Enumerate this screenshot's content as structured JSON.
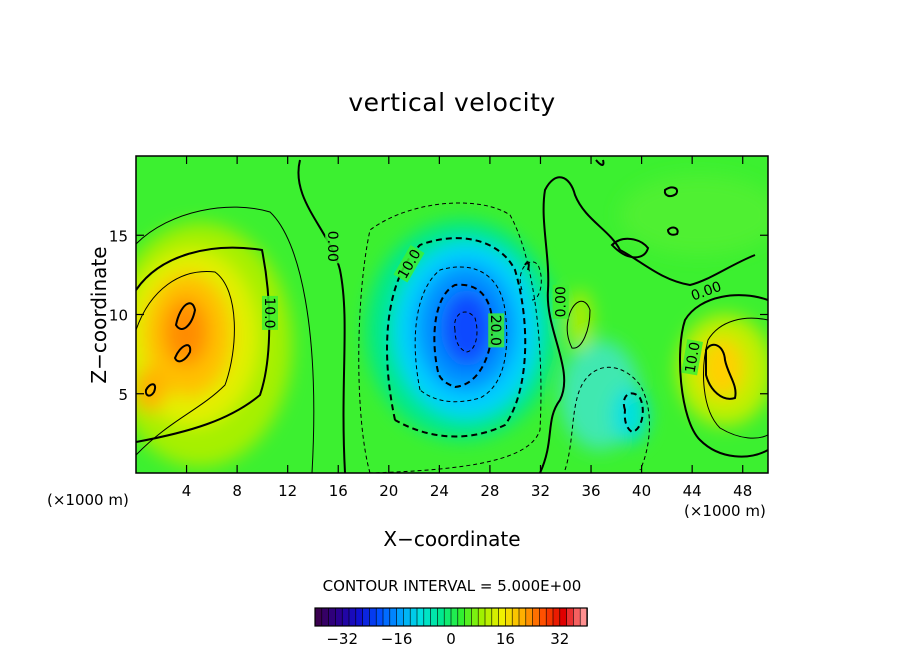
{
  "chart_data": {
    "type": "heatmap",
    "title": "vertical velocity",
    "xlabel": "X−coordinate",
    "ylabel": "Z−coordinate",
    "x_unit": "(×1000 m)",
    "y_unit": "(×1000 m)",
    "xlim": [
      0,
      50
    ],
    "ylim": [
      0,
      20
    ],
    "x_ticks": [
      4,
      8,
      12,
      16,
      20,
      24,
      28,
      32,
      36,
      40,
      44,
      48
    ],
    "y_ticks": [
      5,
      10,
      15
    ],
    "contour_interval": "CONTOUR INTERVAL = 5.000E+00",
    "contour_labels": [
      {
        "text": "0.00",
        "x": 15.6,
        "y": 14.3
      },
      {
        "text": "10.0",
        "x": 10.6,
        "y": 10.1
      },
      {
        "text": "10.0",
        "x": 21.6,
        "y": 13.2
      },
      {
        "text": "20.0",
        "x": 28.5,
        "y": 9.0
      },
      {
        "text": "0.00",
        "x": 33.6,
        "y": 10.8
      },
      {
        "text": "0.00",
        "x": 45.1,
        "y": 11.5
      },
      {
        "text": "10.0",
        "x": 44.0,
        "y": 7.3
      }
    ],
    "colorbar": {
      "range": [
        -40,
        40
      ],
      "ticks": [
        -32,
        -16,
        0,
        16,
        32
      ],
      "colors": [
        "#3a0050",
        "#2a0090",
        "#1010d0",
        "#0050ff",
        "#00a0ff",
        "#00e0e0",
        "#00e890",
        "#30f030",
        "#a0f000",
        "#f0f000",
        "#ffb000",
        "#ff5000",
        "#e00000",
        "#ff9090"
      ]
    },
    "features": [
      {
        "type": "max",
        "x": 4.5,
        "y": 9.5,
        "value": 22
      },
      {
        "type": "min",
        "x": 26.3,
        "y": 8.8,
        "value": -24
      },
      {
        "type": "max",
        "x": 45.5,
        "y": 7.0,
        "value": 16
      },
      {
        "type": "min",
        "x": 39.2,
        "y": 3.8,
        "value": -6
      },
      {
        "type": "max",
        "x": 34.5,
        "y": 9.5,
        "value": 6
      }
    ]
  }
}
